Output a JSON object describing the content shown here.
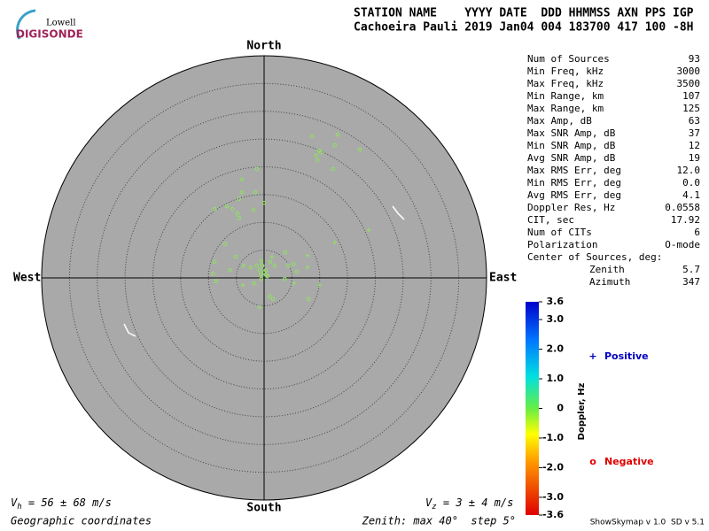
{
  "chart_data": {
    "type": "skymap",
    "logo": {
      "top": "Lowell",
      "bottom": "DIGISONDE"
    },
    "header": [
      "STATION NAME    YYYY DATE  DDD HHMMSS AXN PPS IGP",
      "Cachoeira Pauli 2019 Jan04 004 183700 417 100 -8H"
    ],
    "compass": {
      "north": "North",
      "south": "South",
      "east": "East",
      "west": "West"
    },
    "rlim": [
      0,
      40
    ],
    "rstep": 5,
    "series": [
      {
        "name": "Positive",
        "marker": "+",
        "color": "#8fe35f",
        "legend_color": "#0000c0",
        "x": [
          12.7,
          18.8,
          7.8,
          7.8,
          -3.8,
          -0.8,
          10.0,
          5.4,
          1.4
        ],
        "y": [
          6.4,
          8.6,
          4.0,
          1.9,
          -1.3,
          -5.3,
          -1.3,
          -1.0,
          3.8
        ]
      },
      {
        "name": "Negative",
        "marker": "o",
        "color": "#8fe35f",
        "legend_color": "#e00000",
        "x": [
          8.6,
          13.2,
          9.9,
          9.4,
          10.2,
          17.2,
          12.7,
          12.4,
          9.6,
          -1.3,
          -4.0,
          -4.0,
          -1.6,
          -8.9,
          -6.7,
          -5.7,
          -4.5,
          -1.9,
          0,
          -4.8,
          -4.5,
          -7.0,
          -8.9,
          -6.1,
          -9.2,
          -8.6,
          -3.7,
          -2.4,
          -1.3,
          -0.5,
          0.3,
          1.1,
          1.9,
          3.8,
          4.3,
          5.3,
          5.9,
          3.7,
          1.0,
          1.6,
          8.0,
          -1.8,
          -0.5,
          0.3,
          -0.8,
          -0.3,
          -5.1,
          0,
          0.6,
          -0.6
        ],
        "y": [
          25.5,
          25.8,
          22.9,
          22.0,
          22.6,
          23.1,
          23.9,
          19.6,
          21.2,
          19.6,
          17.7,
          15.4,
          15.4,
          12.4,
          12.9,
          12.4,
          14.2,
          12.3,
          13.5,
          11.6,
          10.8,
          6.1,
          2.9,
          1.4,
          0.8,
          -0.6,
          2.2,
          1.9,
          2.2,
          3.0,
          1.4,
          2.9,
          2.2,
          4.6,
          2.2,
          2.5,
          1.1,
          -0.2,
          -3.3,
          -3.8,
          -3.8,
          -1.0,
          -0.2,
          0.6,
          1.4,
          2.2,
          3.8,
          1.0,
          0.3,
          0.6
        ]
      }
    ],
    "colorbar": {
      "label": "Doppler, Hz",
      "lim": [
        -3.6,
        3.6
      ],
      "ticks": [
        3.6,
        {
          "value": 3.0,
          "label": "3.0"
        },
        {
          "value": 2.0,
          "label": "2.0"
        },
        {
          "value": 1.0,
          "label": "1.0"
        },
        0,
        {
          "value": -1.0,
          "label": "-1.0"
        },
        {
          "value": -2.0,
          "label": "-2.0"
        },
        {
          "value": -3.0,
          "label": "-3.0"
        },
        -3.6
      ]
    },
    "stats": [
      [
        "Num of Sources",
        "93"
      ],
      [
        "Min Freq, kHz",
        "3000"
      ],
      [
        "Max Freq, kHz",
        "3500"
      ],
      [
        "Min Range, km",
        "107"
      ],
      [
        "Max Range, km",
        "125"
      ],
      [
        "Max Amp, dB",
        "63"
      ],
      [
        "Max SNR Amp, dB",
        "37"
      ],
      [
        "Min SNR Amp, dB",
        "12"
      ],
      [
        "Avg SNR Amp, dB",
        "19"
      ],
      [
        "Max RMS Err, deg",
        "12.0"
      ],
      [
        "Min RMS Err, deg",
        "0.0"
      ],
      [
        "Avg RMS Err, deg",
        "4.1"
      ],
      [
        "Doppler Res, Hz",
        "0.0558"
      ],
      [
        "CIT, sec",
        "17.92"
      ],
      [
        "Num of CITs",
        "6"
      ],
      [
        "Polarization",
        "O-mode"
      ]
    ],
    "center": {
      "title": "Center of Sources, deg:",
      "rows": [
        [
          "Zenith",
          "5.7"
        ],
        [
          "Azimuth",
          "347"
        ]
      ]
    },
    "vh": {
      "symbol": "V",
      "sub": "h",
      "text": " = 56 ± 68 m/s"
    },
    "vz": {
      "symbol": "V",
      "sub": "z",
      "text": " = 3 ± 4 m/s"
    },
    "coords": "Geographic coordinates",
    "zenith_note": "Zenith: max 40°  step 5°",
    "version": "ShowSkymap v 1.0  SD v 5.1"
  }
}
